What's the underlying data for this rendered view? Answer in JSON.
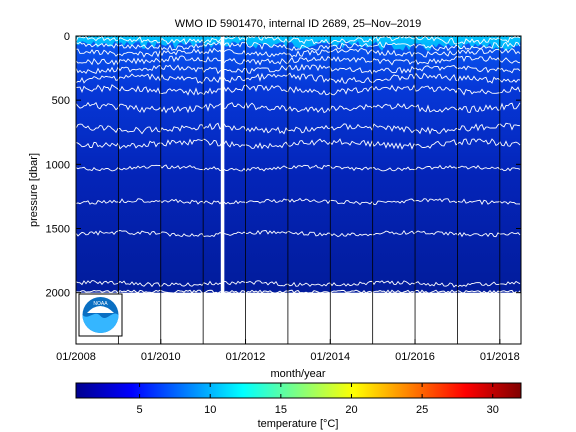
{
  "chart_data": {
    "type": "heatmap",
    "title": "WMO ID 5901470, internal ID 2689, 25–Nov–2019",
    "xlabel": "month/year",
    "ylabel": "pressure [dbar]",
    "xlim": [
      "2008-01",
      "2018-07"
    ],
    "ylim": [
      0,
      2400
    ],
    "y_reversed": true,
    "x_ticks": [
      "01/2008",
      "01/2010",
      "01/2012",
      "01/2014",
      "01/2016",
      "01/2018"
    ],
    "y_ticks": [
      0,
      500,
      1000,
      1500,
      2000
    ],
    "profile_depth_dbar": 2000,
    "data_gap": [
      "2011-06",
      "2011-07"
    ],
    "vertical_year_lines": [
      "2008-01",
      "2009-01",
      "2010-01",
      "2011-01",
      "2012-01",
      "2013-01",
      "2014-01",
      "2015-01",
      "2016-01",
      "2017-01",
      "2018-01"
    ],
    "isotherm_depths_dbar": [
      30,
      80,
      130,
      190,
      260,
      330,
      420,
      560,
      720,
      840,
      1030,
      1290,
      1540,
      1930
    ],
    "colorbar": {
      "label": "temperature [°C]",
      "range": [
        0.5,
        32
      ],
      "ticks": [
        5,
        10,
        15,
        20,
        25,
        30
      ],
      "colormap": [
        "#00008f",
        "#0000ff",
        "#0080ff",
        "#00ffff",
        "#80ff80",
        "#ffff00",
        "#ff8000",
        "#ff0000",
        "#800000"
      ]
    },
    "fill_colors": {
      "surface": "#00c8ff",
      "upper": "#0a55f0",
      "mid": "#0638d8",
      "deep": "#0424b8",
      "bottom": "#021c9c"
    },
    "logo": "noaa-logo"
  }
}
